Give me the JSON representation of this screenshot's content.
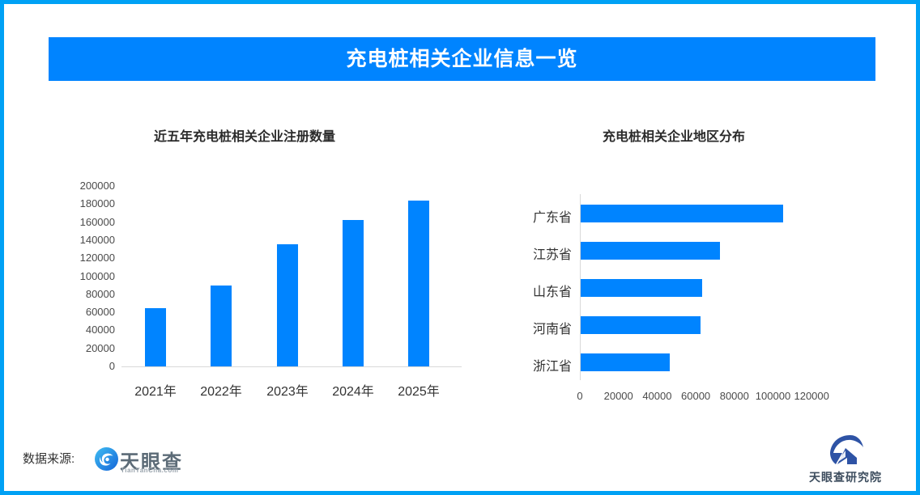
{
  "banner": {
    "title": "充电桩相关企业信息一览"
  },
  "chart_data": [
    {
      "type": "bar",
      "title": "近五年充电桩相关企业注册数量",
      "categories": [
        "2021年",
        "2022年",
        "2023年",
        "2024年",
        "2025年"
      ],
      "values": [
        65000,
        90000,
        135000,
        162000,
        184000
      ],
      "xlabel": "",
      "ylabel": "",
      "ylim": [
        0,
        200000
      ],
      "yticks": [
        0,
        20000,
        40000,
        60000,
        80000,
        100000,
        120000,
        140000,
        160000,
        180000,
        200000
      ],
      "grid": false,
      "bar_color": "#0084FF"
    },
    {
      "type": "bar",
      "orientation": "horizontal",
      "title": "充电桩相关企业地区分布",
      "categories": [
        "广东省",
        "江苏省",
        "山东省",
        "河南省",
        "浙江省"
      ],
      "values": [
        105000,
        72000,
        63000,
        62000,
        46000
      ],
      "xlabel": "",
      "ylabel": "",
      "xlim": [
        0,
        120000
      ],
      "xticks": [
        0,
        20000,
        40000,
        60000,
        80000,
        100000,
        120000
      ],
      "grid": false,
      "bar_color": "#0084FF"
    }
  ],
  "footer": {
    "source_label": "数据来源:",
    "tianyancha_logo": "tianyancha-eye-icon",
    "tianyancha_name": "天眼查",
    "tianyancha_sub": "TianYanCha.com",
    "institute_logo": "tianyancha-institute-icon",
    "institute_name": "天眼查研究院"
  },
  "colors": {
    "frame_border": "#00A1F5",
    "banner_bg": "#0084FF",
    "banner_text": "#FFFFFF",
    "bar_fill": "#0084FF",
    "axis_line": "#D9D9D9",
    "title_text": "#2B2B2B",
    "tick_text": "#4A4A4A"
  }
}
